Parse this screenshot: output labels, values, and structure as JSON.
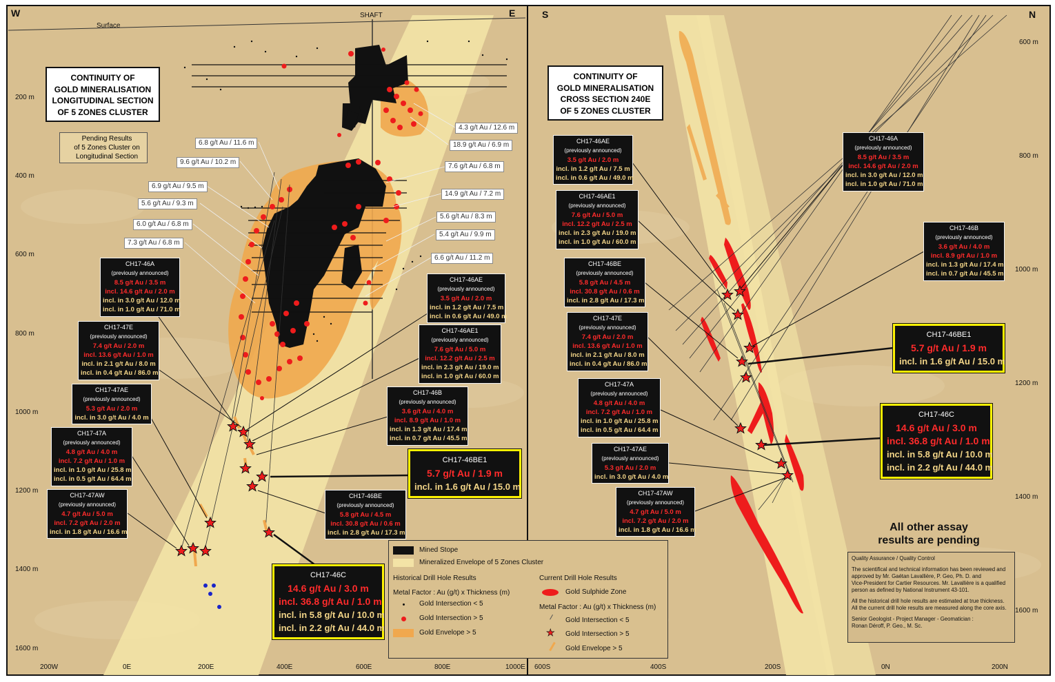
{
  "left_panel": {
    "compass_w": "W",
    "compass_e": "E",
    "surface_label": "Surface",
    "shaft_label": "SHAFT",
    "title_lines": [
      "CONTINUITY OF",
      "GOLD MINERALISATION",
      "LONGITUDINAL SECTION",
      "OF 5 ZONES CLUSTER"
    ],
    "pending_lines": [
      "Pending Results",
      "of 5 Zones Cluster on",
      "Longitudinal Section"
    ],
    "depth_labels": [
      "200 m",
      "400 m",
      "600 m",
      "800 m",
      "1000 m",
      "1200 m",
      "1400 m",
      "1600 m"
    ],
    "x_labels": [
      "200W",
      "0E",
      "200E",
      "400E",
      "600E",
      "800E",
      "1000E"
    ],
    "historical_labels": [
      "6.8 g/t Au / 11.6 m",
      "9.6 g/t Au / 10.2 m",
      "6.9 g/t  Au / 9.5 m",
      "5.6 g/t Au / 9.3 m",
      "6.0 g/t Au / 6.8 m",
      "7.3 g/t Au / 6.8 m",
      "4.3 g/t Au / 12.6 m",
      "18.9 g/t Au / 6.9 m",
      "7.6 g/t Au / 6.8 m",
      "14.9 g/t Au / 7.2 m",
      "5.6 g/t Au / 8.3 m",
      "5.4 g/t Au / 9.9 m",
      "6.6 g/t Au / 11.2 m"
    ]
  },
  "right_panel": {
    "compass_s": "S",
    "compass_n": "N",
    "title_lines": [
      "CONTINUITY OF",
      "GOLD MINERALISATION",
      "CROSS SECTION 240E",
      "OF 5 ZONES CLUSTER"
    ],
    "depth_labels": [
      "600 m",
      "800 m",
      "1000 m",
      "1200 m",
      "1400 m",
      "1600 m"
    ],
    "x_labels": [
      "600S",
      "400S",
      "200S",
      "0N",
      "200N"
    ],
    "pending_all": [
      "All other assay",
      "results are pending"
    ],
    "qa_title": "Quality Assurance / Quality Control",
    "qa_lines": [
      "The scientifical and technical information has been reviewed and",
      "approved by Mr. Gaétan Lavallière, P. Geo, Ph. D. and",
      "Vice-President for Cartier Resources. Mr. Lavallière is a qualified",
      "person as defined by National Instrument 43-101.",
      "",
      "All the historical drill hole results are estimated at true thickness.",
      "All the current drill hole results are measured along the core axis.",
      "",
      "Senior Geologist - Project Manager - Geomatician :",
      "Ronan Déroff, P. Geo., M. Sc."
    ]
  },
  "drill_boxes": {
    "h46A": {
      "id": "CH17-46A",
      "note": "(previously announced)",
      "lines": [
        "8.5 g/t Au / 3.5 m",
        "incl. 14.6 g/t Au / 2.0 m",
        "incl. in 3.0 g/t Au / 12.0 m",
        "incl. in 1.0 g/t Au / 71.0 m"
      ]
    },
    "h47E": {
      "id": "CH17-47E",
      "note": "(previously announced)",
      "lines": [
        "7.4 g/t Au / 2.0 m",
        "incl. 13.6 g/t Au / 1.0 m",
        "incl. in 2.1 g/t Au / 8.0 m",
        "incl. in 0.4 g/t Au / 86.0 m"
      ]
    },
    "h47AE": {
      "id": "CH17-47AE",
      "note": "(previously announced)",
      "lines": [
        "5.3 g/t Au / 2.0 m",
        "incl. in 3.0 g/t Au / 4.0 m"
      ]
    },
    "h47A": {
      "id": "CH17-47A",
      "note": "(previously announced)",
      "lines": [
        "4.8 g/t Au / 4.0 m",
        "incl. 7.2 g/t Au / 1.0 m",
        "incl. in 1.0 g/t Au / 25.8 m",
        "incl. in 0.5 g/t Au / 64.4 m"
      ]
    },
    "h47AW": {
      "id": "CH17-47AW",
      "note": "(previously announced)",
      "lines": [
        "4.7 g/t Au / 5.0 m",
        "incl. 7.2 g/t Au / 2.0 m",
        "incl. in 1.8 g/t Au / 16.6 m"
      ]
    },
    "h46AE": {
      "id": "CH17-46AE",
      "note": "(previously announced)",
      "lines": [
        "3.5 g/t Au / 2.0 m",
        "incl. in 1.2 g/t Au / 7.5 m",
        "incl. in 0.6 g/t Au / 49.0 m"
      ]
    },
    "h46AE1": {
      "id": "CH17-46AE1",
      "note": "(previously announced)",
      "lines": [
        "7.6 g/t Au / 5.0 m",
        "incl. 12.2 g/t Au / 2.5 m",
        "incl. in 2.3 g/t Au / 19.0 m",
        "incl. in 1.0 g/t Au / 60.0 m"
      ]
    },
    "h46B": {
      "id": "CH17-46B",
      "note": "(previously announced)",
      "lines": [
        "3.6 g/t Au / 4.0 m",
        "incl. 8.9 g/t Au / 1.0 m",
        "incl. in 1.3 g/t Au / 17.4 m",
        "incl. in 0.7 g/t Au / 45.5 m"
      ]
    },
    "h46BE": {
      "id": "CH17-46BE",
      "note": "(previously announced)",
      "lines": [
        "5.8 g/t Au / 4.5 m",
        "incl. 30.8 g/t Au / 0.6 m",
        "incl. in 2.8 g/t Au / 17.3 m"
      ]
    },
    "h46BE1": {
      "id": "CH17-46BE1",
      "lines": [
        "5.7 g/t Au / 1.9 m",
        "incl. in 1.6 g/t Au / 15.0 m"
      ]
    },
    "h46C": {
      "id": "CH17-46C",
      "lines": [
        "14.6 g/t Au / 3.0 m",
        "incl. 36.8 g/t Au / 1.0 m",
        "incl. in 5.8 g/t Au / 10.0 m",
        "incl. in 2.2 g/t Au / 44.0 m"
      ]
    }
  },
  "legend": {
    "mined_stope": "Mined Stope",
    "envelope": "Mineralized Envelope of 5 Zones Cluster",
    "historical_title": "Historical Drill Hole Results",
    "current_title": "Current Drill Hole Results",
    "metal_factor_1": "Metal Factor : Au (g/t) x Thickness (m)",
    "metal_factor_2": "Metal Factor : Au (g/t) x Thickness (m)",
    "gold_lt5": "Gold Intersection < 5",
    "gold_gt5": "Gold Intersection > 5",
    "gold_env": "Gold Envelope > 5",
    "sulphide": "Gold Sulphide Zone",
    "cur_lt5": "Gold Intersection < 5",
    "cur_gt5": "Gold Intersection > 5",
    "cur_env": "Gold Envelope > 5"
  },
  "colors": {
    "background": "#d8bf90",
    "envelope": "#f3e3a6",
    "gold_envelope": "#f0a84e",
    "red_dot": "#ee1c1c",
    "stope": "#111111",
    "box_border_highlight": "#fff200"
  }
}
